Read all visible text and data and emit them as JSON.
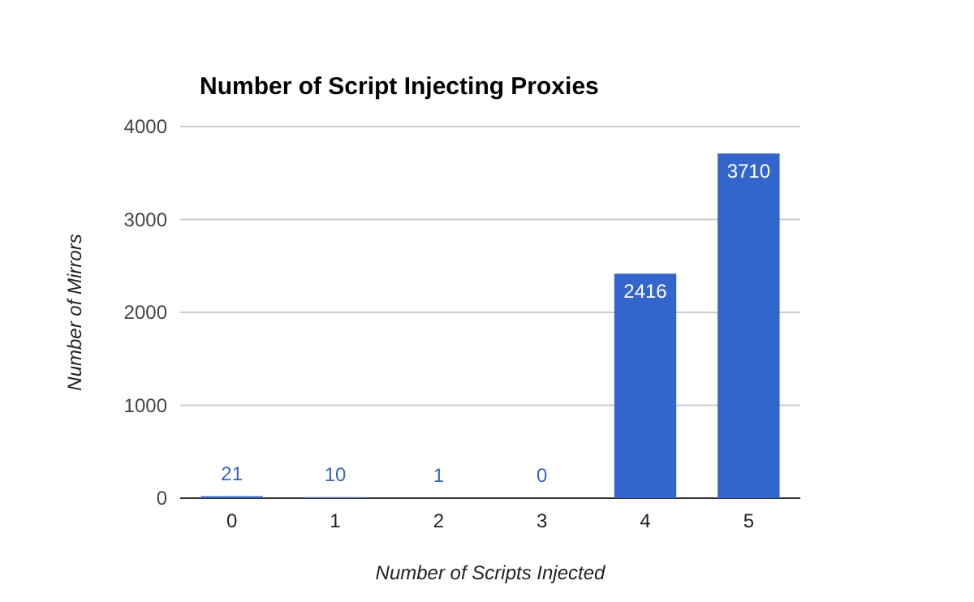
{
  "chart_data": {
    "type": "bar",
    "title": "Number of Script Injecting Proxies",
    "xlabel": "Number of Scripts Injected",
    "ylabel": "Number of Mirrors",
    "categories": [
      "0",
      "1",
      "2",
      "3",
      "4",
      "5"
    ],
    "values": [
      21,
      10,
      1,
      0,
      2416,
      3710
    ],
    "color": "#3366cc",
    "ylim": [
      0,
      4000
    ],
    "yticks": [
      0,
      1000,
      2000,
      3000,
      4000
    ],
    "grid": "y",
    "data_labels": true
  }
}
